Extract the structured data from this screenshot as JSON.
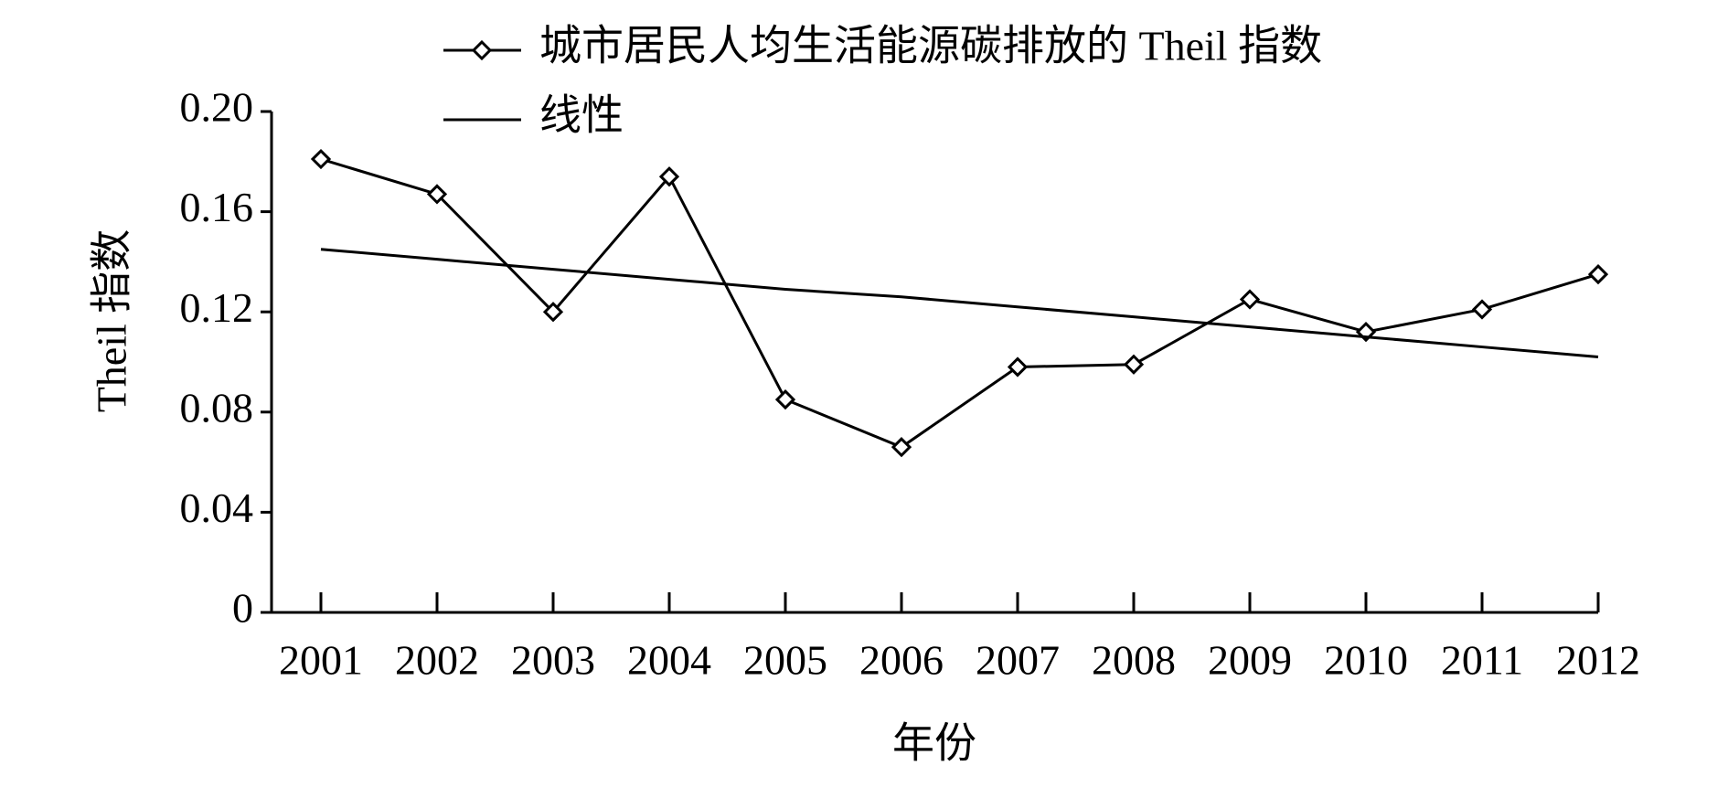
{
  "chart_data": {
    "type": "line",
    "x_label": "年份",
    "y_label": "Theil 指数",
    "categories": [
      "2001",
      "2002",
      "2003",
      "2004",
      "2005",
      "2006",
      "2007",
      "2008",
      "2009",
      "2010",
      "2011",
      "2012"
    ],
    "series": [
      {
        "name": "城市居民人均生活能源碳排放的 Theil 指数",
        "color": "#000000",
        "marker": "diamond",
        "values": [
          0.181,
          0.167,
          0.12,
          0.174,
          0.085,
          0.066,
          0.098,
          0.099,
          0.125,
          0.112,
          0.121,
          0.135
        ]
      },
      {
        "name": "线性",
        "color": "#000000",
        "values": [
          0.145,
          0.141,
          0.137,
          0.133,
          0.129,
          0.126,
          0.122,
          0.118,
          0.114,
          0.11,
          0.106,
          0.102
        ]
      }
    ],
    "ylim": [
      0,
      0.2
    ],
    "yticks": [
      0,
      {
        "value": 0.04,
        "label": "0.04"
      },
      {
        "value": 0.08,
        "label": "0.08"
      },
      {
        "value": 0.12,
        "label": "0.12"
      },
      {
        "value": 0.16,
        "label": "0.16"
      },
      {
        "value": 0.2,
        "label": "0.20"
      }
    ],
    "grid": false
  }
}
